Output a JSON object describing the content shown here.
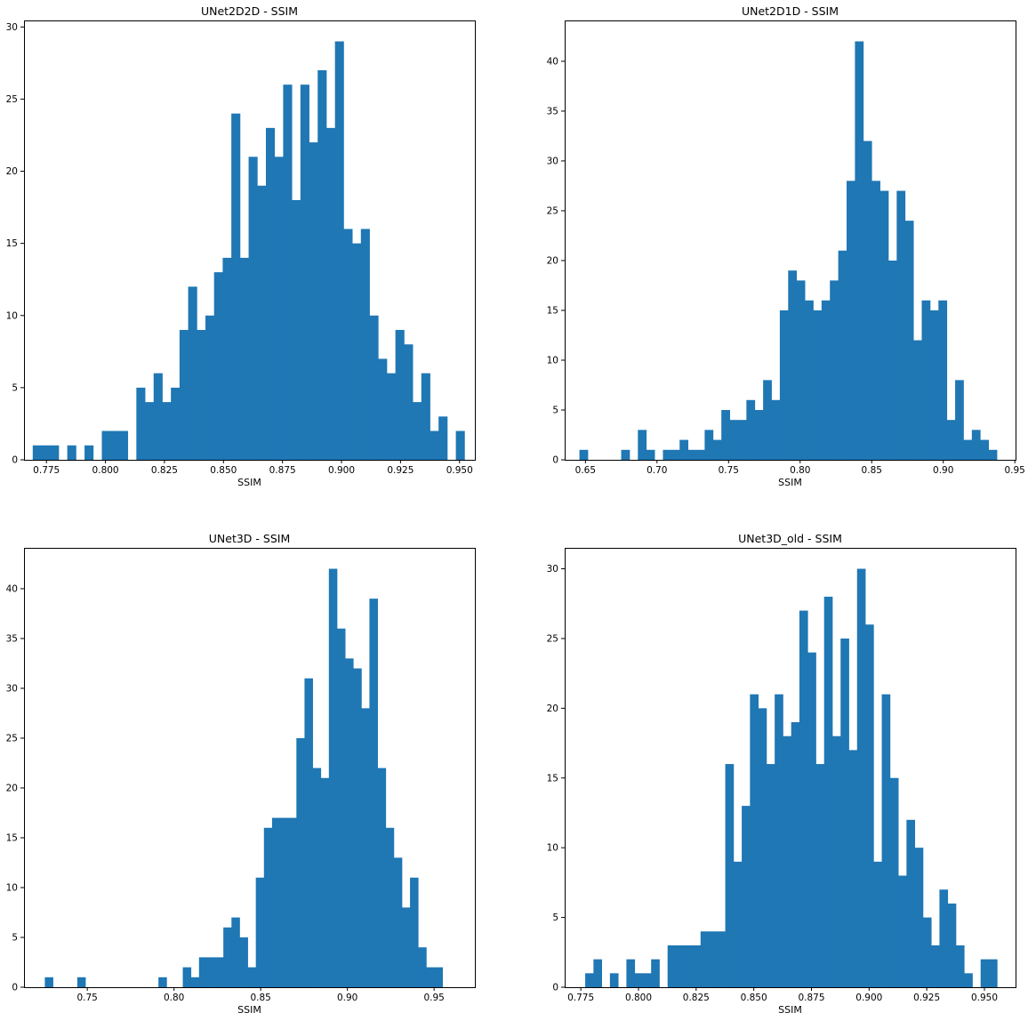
{
  "chart_data": [
    {
      "type": "bar",
      "title": "UNet2D2D - SSIM",
      "xlabel": "SSIM",
      "ylabel": "",
      "bar_color": "#1f77b4",
      "xlim": [
        0.7655,
        0.9565
      ],
      "ylim": [
        0,
        30.45
      ],
      "xticks": [
        0.775,
        0.8,
        0.825,
        0.85,
        0.875,
        0.9,
        0.925,
        0.95
      ],
      "xtick_labels": [
        "0.775",
        "0.800",
        "0.825",
        "0.850",
        "0.875",
        "0.900",
        "0.925",
        "0.950"
      ],
      "yticks": [
        0,
        5,
        10,
        15,
        20,
        25,
        30
      ],
      "ytick_labels": [
        "0",
        "5",
        "10",
        "15",
        "20",
        "25",
        "30"
      ],
      "x_start": 0.7692,
      "bin_width": 0.003658,
      "values": [
        1,
        1,
        1,
        0,
        1,
        0,
        1,
        0,
        2,
        2,
        2,
        0,
        5,
        4,
        6,
        4,
        5,
        9,
        12,
        9,
        10,
        13,
        14,
        24,
        14,
        21,
        19,
        23,
        21,
        26,
        18,
        26,
        22,
        27,
        23,
        29,
        16,
        15,
        16,
        10,
        7,
        6,
        9,
        8,
        4,
        6,
        2,
        3,
        0,
        2
      ]
    },
    {
      "type": "bar",
      "title": "UNet2D1D - SSIM",
      "xlabel": "SSIM",
      "ylabel": "",
      "bar_color": "#1f77b4",
      "xlim": [
        0.6355,
        0.9505
      ],
      "ylim": [
        0,
        44.1
      ],
      "xticks": [
        0.65,
        0.7,
        0.75,
        0.8,
        0.85,
        0.9,
        0.95
      ],
      "xtick_labels": [
        "0.65",
        "0.70",
        "0.75",
        "0.80",
        "0.85",
        "0.90",
        "0.95"
      ],
      "yticks": [
        0,
        5,
        10,
        15,
        20,
        25,
        30,
        35,
        40
      ],
      "ytick_labels": [
        "0",
        "5",
        "10",
        "15",
        "20",
        "25",
        "30",
        "35",
        "40"
      ],
      "x_start": 0.6458,
      "bin_width": 0.005833,
      "values": [
        1,
        0,
        0,
        0,
        0,
        1,
        0,
        3,
        1,
        0,
        1,
        1,
        2,
        1,
        1,
        3,
        2,
        5,
        4,
        4,
        6,
        5,
        8,
        6,
        15,
        19,
        18,
        16,
        15,
        16,
        18,
        21,
        28,
        42,
        32,
        28,
        27,
        20,
        27,
        24,
        12,
        16,
        15,
        16,
        4,
        8,
        2,
        3,
        2,
        1
      ]
    },
    {
      "type": "bar",
      "title": "UNet3D - SSIM",
      "xlabel": "SSIM",
      "ylabel": "",
      "bar_color": "#1f77b4",
      "xlim": [
        0.7135,
        0.9735
      ],
      "ylim": [
        0,
        44.1
      ],
      "xticks": [
        0.75,
        0.8,
        0.85,
        0.9,
        0.95
      ],
      "xtick_labels": [
        "0.75",
        "0.80",
        "0.85",
        "0.90",
        "0.95"
      ],
      "yticks": [
        0,
        5,
        10,
        15,
        20,
        25,
        30,
        35,
        40
      ],
      "ytick_labels": [
        "0",
        "5",
        "10",
        "15",
        "20",
        "25",
        "30",
        "35",
        "40"
      ],
      "x_start": 0.7255,
      "bin_width": 0.00468,
      "values": [
        1,
        0,
        0,
        0,
        1,
        0,
        0,
        0,
        0,
        0,
        0,
        0,
        0,
        0,
        1,
        0,
        0,
        2,
        1,
        3,
        3,
        3,
        6,
        7,
        5,
        2,
        11,
        16,
        17,
        17,
        17,
        25,
        31,
        22,
        21,
        42,
        36,
        33,
        32,
        28,
        39,
        22,
        16,
        13,
        8,
        11,
        4,
        2,
        2,
        0
      ]
    },
    {
      "type": "bar",
      "title": "UNet3D_old - SSIM",
      "xlabel": "SSIM",
      "ylabel": "",
      "bar_color": "#1f77b4",
      "xlim": [
        0.768,
        0.9635
      ],
      "ylim": [
        0,
        31.5
      ],
      "xticks": [
        0.775,
        0.8,
        0.825,
        0.85,
        0.875,
        0.9,
        0.925,
        0.95
      ],
      "xtick_labels": [
        "0.775",
        "0.800",
        "0.825",
        "0.850",
        "0.875",
        "0.900",
        "0.925",
        "0.950"
      ],
      "yticks": [
        0,
        5,
        10,
        15,
        20,
        25,
        30
      ],
      "ytick_labels": [
        "0",
        "5",
        "10",
        "15",
        "20",
        "25",
        "30"
      ],
      "x_start": 0.7769,
      "bin_width": 0.003572,
      "values": [
        1,
        2,
        0,
        1,
        0,
        2,
        1,
        1,
        2,
        0,
        3,
        3,
        3,
        3,
        4,
        4,
        4,
        16,
        9,
        13,
        21,
        20,
        16,
        21,
        18,
        19,
        27,
        24,
        16,
        28,
        18,
        25,
        17,
        30,
        26,
        9,
        21,
        15,
        8,
        12,
        10,
        5,
        3,
        7,
        6,
        3,
        1,
        0,
        2,
        2
      ]
    }
  ]
}
